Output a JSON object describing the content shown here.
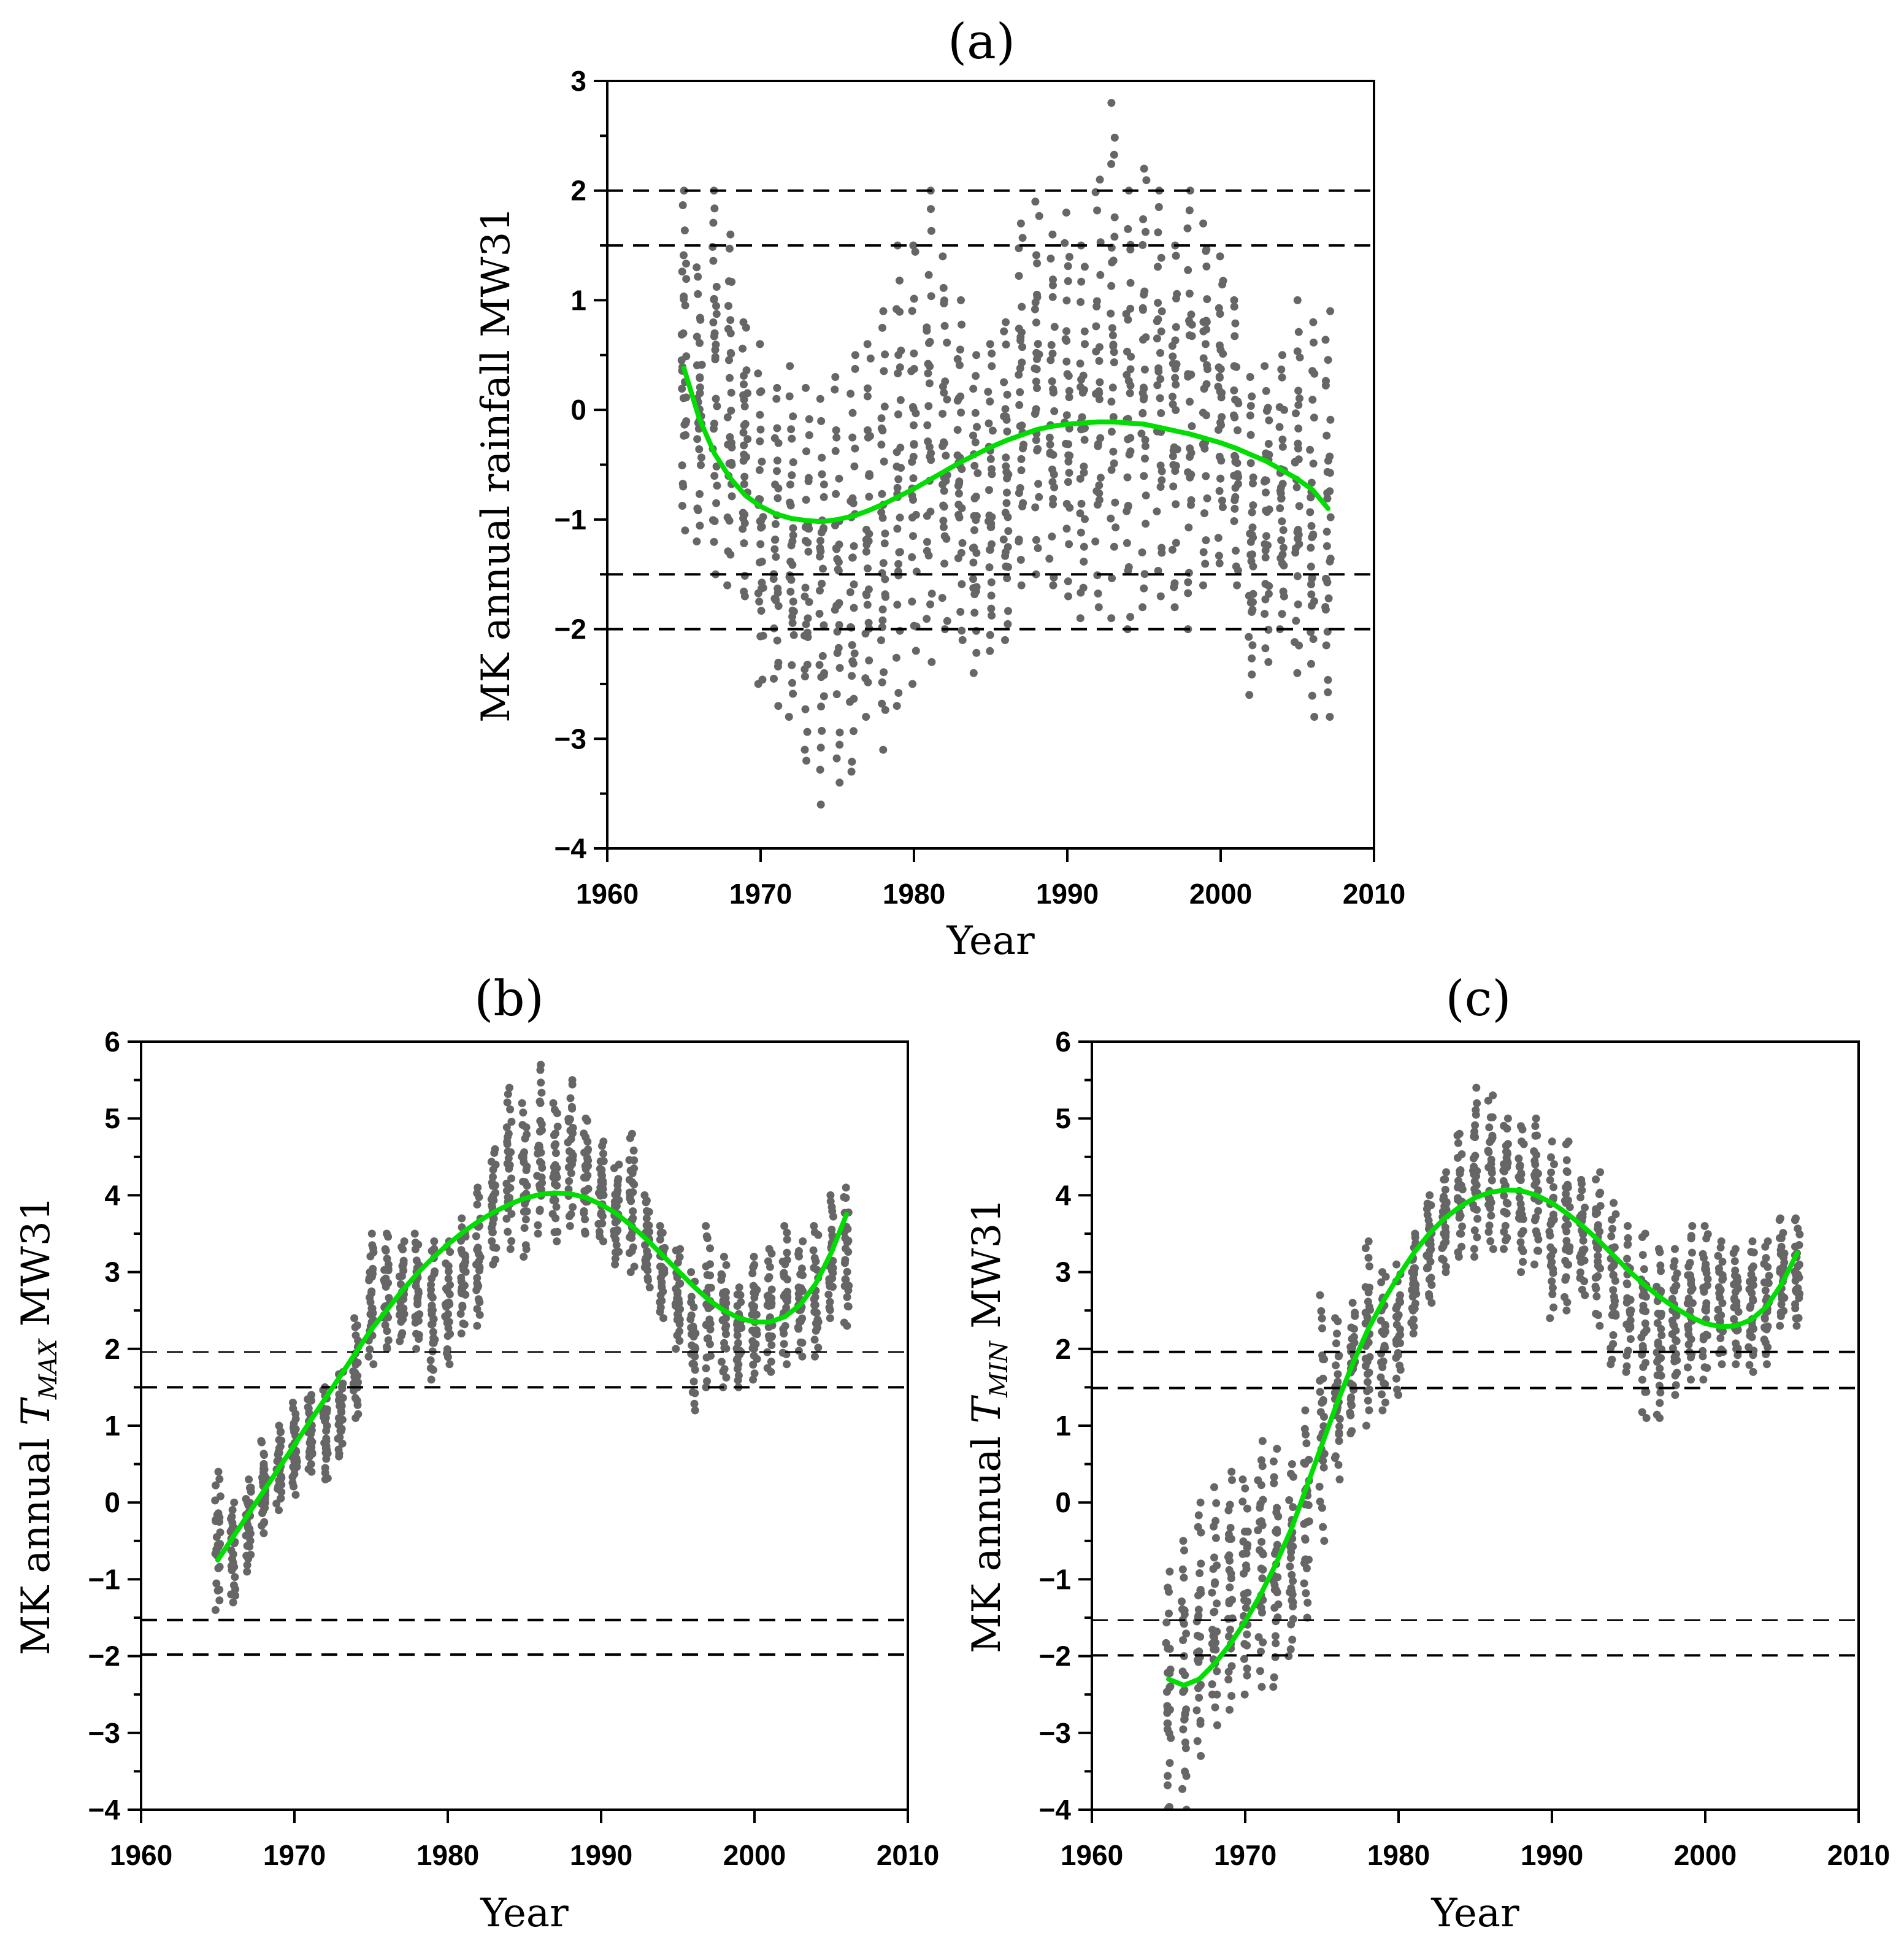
{
  "colors": {
    "points": "#666666",
    "trend": "#00dd00",
    "axes": "#000000"
  },
  "chart_data": [
    {
      "id": "a",
      "type": "scatter",
      "title": "(a)",
      "xlabel": "Year",
      "ylabel": "MK annual rainfall MW31",
      "ylabel_sub": "",
      "ylabel_tail": "",
      "xlim": [
        1960,
        2010
      ],
      "ylim": [
        -4,
        3
      ],
      "xticks": [
        1960,
        1970,
        1980,
        1990,
        2000,
        2010
      ],
      "yticks": [
        -4,
        -3,
        -2,
        -1,
        0,
        1,
        2,
        3
      ],
      "yticks_minor": [
        -3.5,
        -2.5,
        -1.5,
        -0.5,
        0.5,
        1.5,
        2.5
      ],
      "reference_lines": [
        {
          "y": 2.0,
          "style": "dashed",
          "weight": "regular"
        },
        {
          "y": 1.5,
          "style": "dashed",
          "weight": "regular"
        },
        {
          "y": -1.5,
          "style": "dashed",
          "weight": "regular"
        },
        {
          "y": -2.0,
          "style": "dashed",
          "weight": "regular"
        }
      ],
      "year_range": [
        1965,
        2007
      ],
      "scatter_envelope": {
        "years": [
          1965,
          1966,
          1967,
          1968,
          1969,
          1970,
          1971,
          1972,
          1973,
          1974,
          1975,
          1976,
          1977,
          1978,
          1979,
          1980,
          1981,
          1982,
          1983,
          1984,
          1985,
          1986,
          1987,
          1988,
          1989,
          1990,
          1991,
          1992,
          1993,
          1994,
          1995,
          1996,
          1997,
          1998,
          1999,
          2000,
          2001,
          2002,
          2003,
          2004,
          2005,
          2006,
          2007
        ],
        "low": [
          -1.1,
          -1.2,
          -1.5,
          -1.6,
          -1.7,
          -2.5,
          -2.7,
          -2.8,
          -3.2,
          -3.6,
          -3.4,
          -3.3,
          -2.8,
          -3.1,
          -2.7,
          -2.5,
          -2.3,
          -2.0,
          -2.1,
          -2.4,
          -2.2,
          -2.1,
          -1.6,
          -1.5,
          -1.6,
          -1.7,
          -1.9,
          -1.8,
          -1.9,
          -2.0,
          -1.8,
          -1.7,
          -1.8,
          -2.0,
          -1.6,
          -1.4,
          -1.6,
          -2.6,
          -2.3,
          -2.0,
          -2.4,
          -2.8,
          -2.8
        ],
        "high": [
          2.0,
          1.3,
          2.0,
          1.6,
          0.8,
          0.6,
          0.2,
          0.4,
          0.2,
          0.1,
          0.3,
          0.5,
          0.6,
          0.9,
          1.5,
          1.5,
          2.0,
          1.4,
          1.0,
          0.5,
          0.6,
          0.8,
          1.7,
          1.9,
          1.6,
          1.8,
          1.5,
          2.1,
          2.8,
          2.0,
          2.2,
          2.0,
          1.5,
          2.0,
          1.7,
          1.4,
          1.0,
          0.3,
          0.4,
          0.5,
          1.0,
          0.8,
          0.9
        ],
        "points_per_year": 20
      },
      "trend_curve": {
        "x": [
          1965,
          1966,
          1967,
          1968,
          1969,
          1970,
          1971,
          1972,
          1973,
          1974,
          1975,
          1976,
          1977,
          1978,
          1979,
          1980,
          1981,
          1982,
          1983,
          1984,
          1985,
          1986,
          1987,
          1988,
          1989,
          1990,
          1991,
          1992,
          1993,
          1994,
          1995,
          1996,
          1997,
          1998,
          1999,
          2000,
          2001,
          2002,
          2003,
          2004,
          2005,
          2006,
          2007
        ],
        "y": [
          0.38,
          -0.08,
          -0.4,
          -0.62,
          -0.78,
          -0.88,
          -0.95,
          -0.99,
          -1.01,
          -1.02,
          -1.0,
          -0.97,
          -0.92,
          -0.86,
          -0.79,
          -0.72,
          -0.64,
          -0.56,
          -0.48,
          -0.41,
          -0.34,
          -0.28,
          -0.23,
          -0.18,
          -0.15,
          -0.13,
          -0.12,
          -0.11,
          -0.11,
          -0.12,
          -0.13,
          -0.16,
          -0.19,
          -0.22,
          -0.26,
          -0.3,
          -0.35,
          -0.41,
          -0.47,
          -0.55,
          -0.63,
          -0.73,
          -0.9
        ]
      }
    },
    {
      "id": "b",
      "type": "scatter",
      "title": "(b)",
      "xlabel": "Year",
      "ylabel": "MK annual ",
      "ylabel_italic": "T",
      "ylabel_sub": "MAX",
      "ylabel_tail": " MW31",
      "xlim": [
        1960,
        2010
      ],
      "ylim": [
        -4,
        6
      ],
      "xticks": [
        1960,
        1970,
        1980,
        1990,
        2000,
        2010
      ],
      "yticks": [
        -4,
        -3,
        -2,
        -1,
        0,
        1,
        2,
        3,
        4,
        5,
        6
      ],
      "yticks_minor": [
        -3.5,
        -2.5,
        -1.5,
        -0.5,
        0.5,
        1.5,
        2.5,
        3.5,
        4.5,
        5.5
      ],
      "reference_lines": [
        {
          "y": 1.96,
          "style": "dashed",
          "weight": "thin"
        },
        {
          "y": 1.5,
          "style": "dashed",
          "weight": "regular"
        },
        {
          "y": -1.53,
          "style": "dashed",
          "weight": "regular"
        },
        {
          "y": -1.98,
          "style": "dashed",
          "weight": "regular"
        }
      ],
      "year_range": [
        1965,
        2006
      ],
      "scatter_envelope": {
        "years": [
          1965,
          1966,
          1967,
          1968,
          1969,
          1970,
          1971,
          1972,
          1973,
          1974,
          1975,
          1976,
          1977,
          1978,
          1979,
          1980,
          1981,
          1982,
          1983,
          1984,
          1985,
          1986,
          1987,
          1988,
          1989,
          1990,
          1991,
          1992,
          1993,
          1994,
          1995,
          1996,
          1997,
          1998,
          1999,
          2000,
          2001,
          2002,
          2003,
          2004,
          2005,
          2006
        ],
        "low": [
          -1.4,
          -1.3,
          -0.9,
          -0.4,
          -0.1,
          0.1,
          0.4,
          0.3,
          0.6,
          1.1,
          1.8,
          2.0,
          2.1,
          2.0,
          1.6,
          1.8,
          2.2,
          2.3,
          3.1,
          3.3,
          3.2,
          3.5,
          3.4,
          3.6,
          3.5,
          3.4,
          3.1,
          3.0,
          2.8,
          2.4,
          2.0,
          1.2,
          1.5,
          1.5,
          1.5,
          1.6,
          1.7,
          1.8,
          1.9,
          1.9,
          2.4,
          2.3
        ],
        "high": [
          0.4,
          0.0,
          0.3,
          0.8,
          1.0,
          1.3,
          1.4,
          1.5,
          1.7,
          2.4,
          3.5,
          3.5,
          3.4,
          3.5,
          3.4,
          3.4,
          3.7,
          4.1,
          4.6,
          5.4,
          5.2,
          5.7,
          5.2,
          5.5,
          5.0,
          4.7,
          4.4,
          4.8,
          4.0,
          3.6,
          3.3,
          3.0,
          3.6,
          3.2,
          2.8,
          3.2,
          3.3,
          3.6,
          3.4,
          3.6,
          4.0,
          4.1
        ],
        "points_per_year": 20
      },
      "trend_curve": {
        "x": [
          1965,
          1966,
          1967,
          1968,
          1969,
          1970,
          1971,
          1972,
          1973,
          1974,
          1975,
          1976,
          1977,
          1978,
          1979,
          1980,
          1981,
          1982,
          1983,
          1984,
          1985,
          1986,
          1987,
          1988,
          1989,
          1990,
          1991,
          1992,
          1993,
          1994,
          1995,
          1996,
          1997,
          1998,
          1999,
          2000,
          2001,
          2002,
          2003,
          2004,
          2005,
          2006
        ],
        "y": [
          -0.75,
          -0.45,
          -0.15,
          0.15,
          0.45,
          0.75,
          1.05,
          1.35,
          1.65,
          1.95,
          2.25,
          2.5,
          2.75,
          2.98,
          3.18,
          3.36,
          3.52,
          3.66,
          3.78,
          3.88,
          3.96,
          4.01,
          4.03,
          4.02,
          3.97,
          3.88,
          3.76,
          3.6,
          3.42,
          3.22,
          3.02,
          2.82,
          2.64,
          2.5,
          2.4,
          2.35,
          2.35,
          2.42,
          2.58,
          2.85,
          3.25,
          3.75
        ]
      }
    },
    {
      "id": "c",
      "type": "scatter",
      "title": "(c)",
      "xlabel": "Year",
      "ylabel": "MK annual ",
      "ylabel_italic": "T",
      "ylabel_sub": "MIN",
      "ylabel_tail": " MW31",
      "xlim": [
        1960,
        2010
      ],
      "ylim": [
        -4,
        6
      ],
      "xticks": [
        1960,
        1970,
        1980,
        1990,
        2000,
        2010
      ],
      "yticks": [
        -4,
        -3,
        -2,
        -1,
        0,
        1,
        2,
        3,
        4,
        5,
        6
      ],
      "yticks_minor": [
        -3.5,
        -2.5,
        -1.5,
        -0.5,
        0.5,
        1.5,
        2.5,
        3.5,
        4.5,
        5.5
      ],
      "reference_lines": [
        {
          "y": 1.96,
          "style": "dashed",
          "weight": "regular"
        },
        {
          "y": 1.49,
          "style": "dashed",
          "weight": "regular"
        },
        {
          "y": -1.53,
          "style": "dashed",
          "weight": "thin"
        },
        {
          "y": -1.99,
          "style": "dashed",
          "weight": "regular"
        }
      ],
      "year_range": [
        1965,
        2006
      ],
      "scatter_envelope": {
        "years": [
          1965,
          1966,
          1967,
          1968,
          1969,
          1970,
          1971,
          1972,
          1973,
          1974,
          1975,
          1976,
          1977,
          1978,
          1979,
          1980,
          1981,
          1982,
          1983,
          1984,
          1985,
          1986,
          1987,
          1988,
          1989,
          1990,
          1991,
          1992,
          1993,
          1994,
          1995,
          1996,
          1997,
          1998,
          1999,
          2000,
          2001,
          2002,
          2003,
          2004,
          2005,
          2006
        ],
        "low": [
          -4.2,
          -4.0,
          -3.3,
          -2.9,
          -2.7,
          -2.5,
          -2.4,
          -2.4,
          -2.0,
          -1.5,
          -0.5,
          0.3,
          0.9,
          1.0,
          1.2,
          1.4,
          2.2,
          2.6,
          3.0,
          3.2,
          3.2,
          3.3,
          3.3,
          3.0,
          3.1,
          2.4,
          2.5,
          2.7,
          2.3,
          1.8,
          1.7,
          1.1,
          1.1,
          1.4,
          1.6,
          1.6,
          1.8,
          1.8,
          1.7,
          1.8,
          2.3,
          2.3
        ],
        "high": [
          -0.9,
          -0.5,
          0.0,
          0.2,
          0.4,
          0.3,
          0.8,
          0.7,
          0.5,
          1.2,
          2.7,
          2.4,
          2.6,
          3.4,
          3.0,
          3.1,
          3.5,
          4.0,
          4.3,
          4.8,
          5.4,
          5.3,
          5.0,
          4.9,
          5.0,
          4.7,
          4.7,
          4.2,
          4.3,
          3.9,
          3.6,
          3.5,
          3.3,
          3.3,
          3.6,
          3.6,
          3.4,
          3.3,
          3.4,
          3.4,
          3.7,
          3.7
        ],
        "points_per_year": 20
      },
      "trend_curve": {
        "x": [
          1965,
          1966,
          1967,
          1968,
          1969,
          1970,
          1971,
          1972,
          1973,
          1974,
          1975,
          1976,
          1977,
          1978,
          1979,
          1980,
          1981,
          1982,
          1983,
          1984,
          1985,
          1986,
          1987,
          1988,
          1989,
          1990,
          1991,
          1992,
          1993,
          1994,
          1995,
          1996,
          1997,
          1998,
          1999,
          2000,
          2001,
          2002,
          2003,
          2004,
          2005,
          2006
        ],
        "y": [
          -2.3,
          -2.38,
          -2.3,
          -2.1,
          -1.85,
          -1.55,
          -1.2,
          -0.8,
          -0.35,
          0.2,
          0.75,
          1.3,
          1.8,
          2.25,
          2.62,
          2.95,
          3.25,
          3.5,
          3.7,
          3.85,
          3.97,
          4.04,
          4.07,
          4.06,
          4.0,
          3.9,
          3.76,
          3.6,
          3.42,
          3.22,
          3.02,
          2.84,
          2.68,
          2.54,
          2.42,
          2.33,
          2.29,
          2.3,
          2.38,
          2.55,
          2.85,
          3.25
        ]
      }
    }
  ]
}
